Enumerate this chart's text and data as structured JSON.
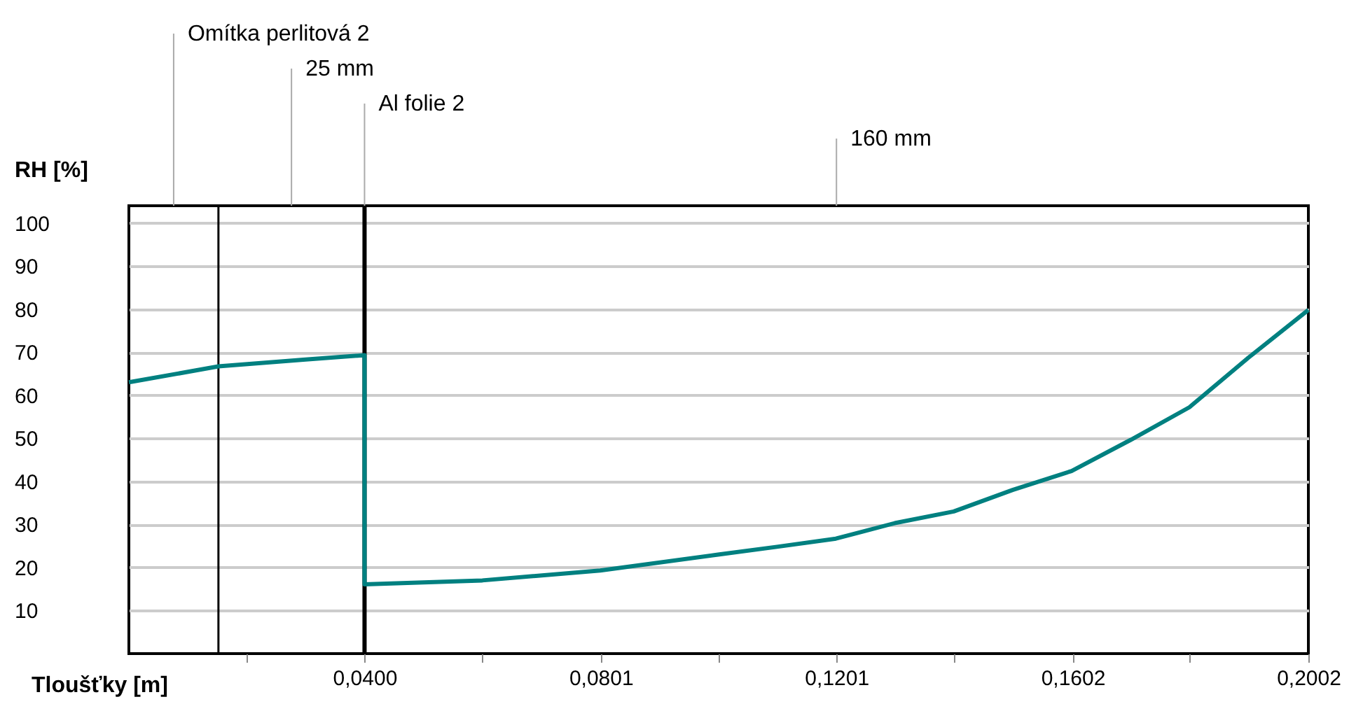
{
  "chart_data": {
    "type": "line",
    "xlabel": "Tloušťky [m]",
    "ylabel": "RH [%]",
    "x": [
      0,
      0.0152,
      0.03,
      0.04,
      0.04,
      0.06,
      0.08,
      0.1,
      0.11,
      0.12,
      0.13,
      0.14,
      0.15,
      0.16,
      0.17,
      0.18,
      0.19,
      0.2002
    ],
    "series": [
      {
        "color": "#008080",
        "values": [
          63.0,
          66.7,
          68.3,
          69.3,
          16.1,
          17.0,
          19.3,
          23.0,
          24.8,
          26.7,
          30.3,
          33.0,
          38.0,
          42.4,
          49.6,
          57.2,
          68.7,
          79.8
        ]
      }
    ],
    "xlim": [
      0,
      0.2002
    ],
    "ylim": [
      0,
      104
    ],
    "xticks": [
      {
        "value": 0.02,
        "label": null
      },
      {
        "value": 0.04,
        "label": "0,0400"
      },
      {
        "value": 0.06,
        "label": null
      },
      {
        "value": 0.0801,
        "label": "0,0801"
      },
      {
        "value": 0.1,
        "label": null
      },
      {
        "value": 0.1201,
        "label": "0,1201"
      },
      {
        "value": 0.14,
        "label": null
      },
      {
        "value": 0.1602,
        "label": "0,1602"
      },
      {
        "value": 0.18,
        "label": null
      },
      {
        "value": 0.2002,
        "label": "0,2002"
      }
    ],
    "yticks": [
      10,
      20,
      30,
      40,
      50,
      60,
      70,
      80,
      90,
      100
    ],
    "grid": "y",
    "ref_lines": [
      {
        "axis": "x",
        "value": 0.0152,
        "color": "#000000"
      },
      {
        "axis": "x",
        "value": 0.04,
        "color": "#000000"
      }
    ],
    "annotations": [
      "Omítka perlitová 2",
      "25 mm",
      "Al folie 2",
      "160 mm"
    ]
  }
}
